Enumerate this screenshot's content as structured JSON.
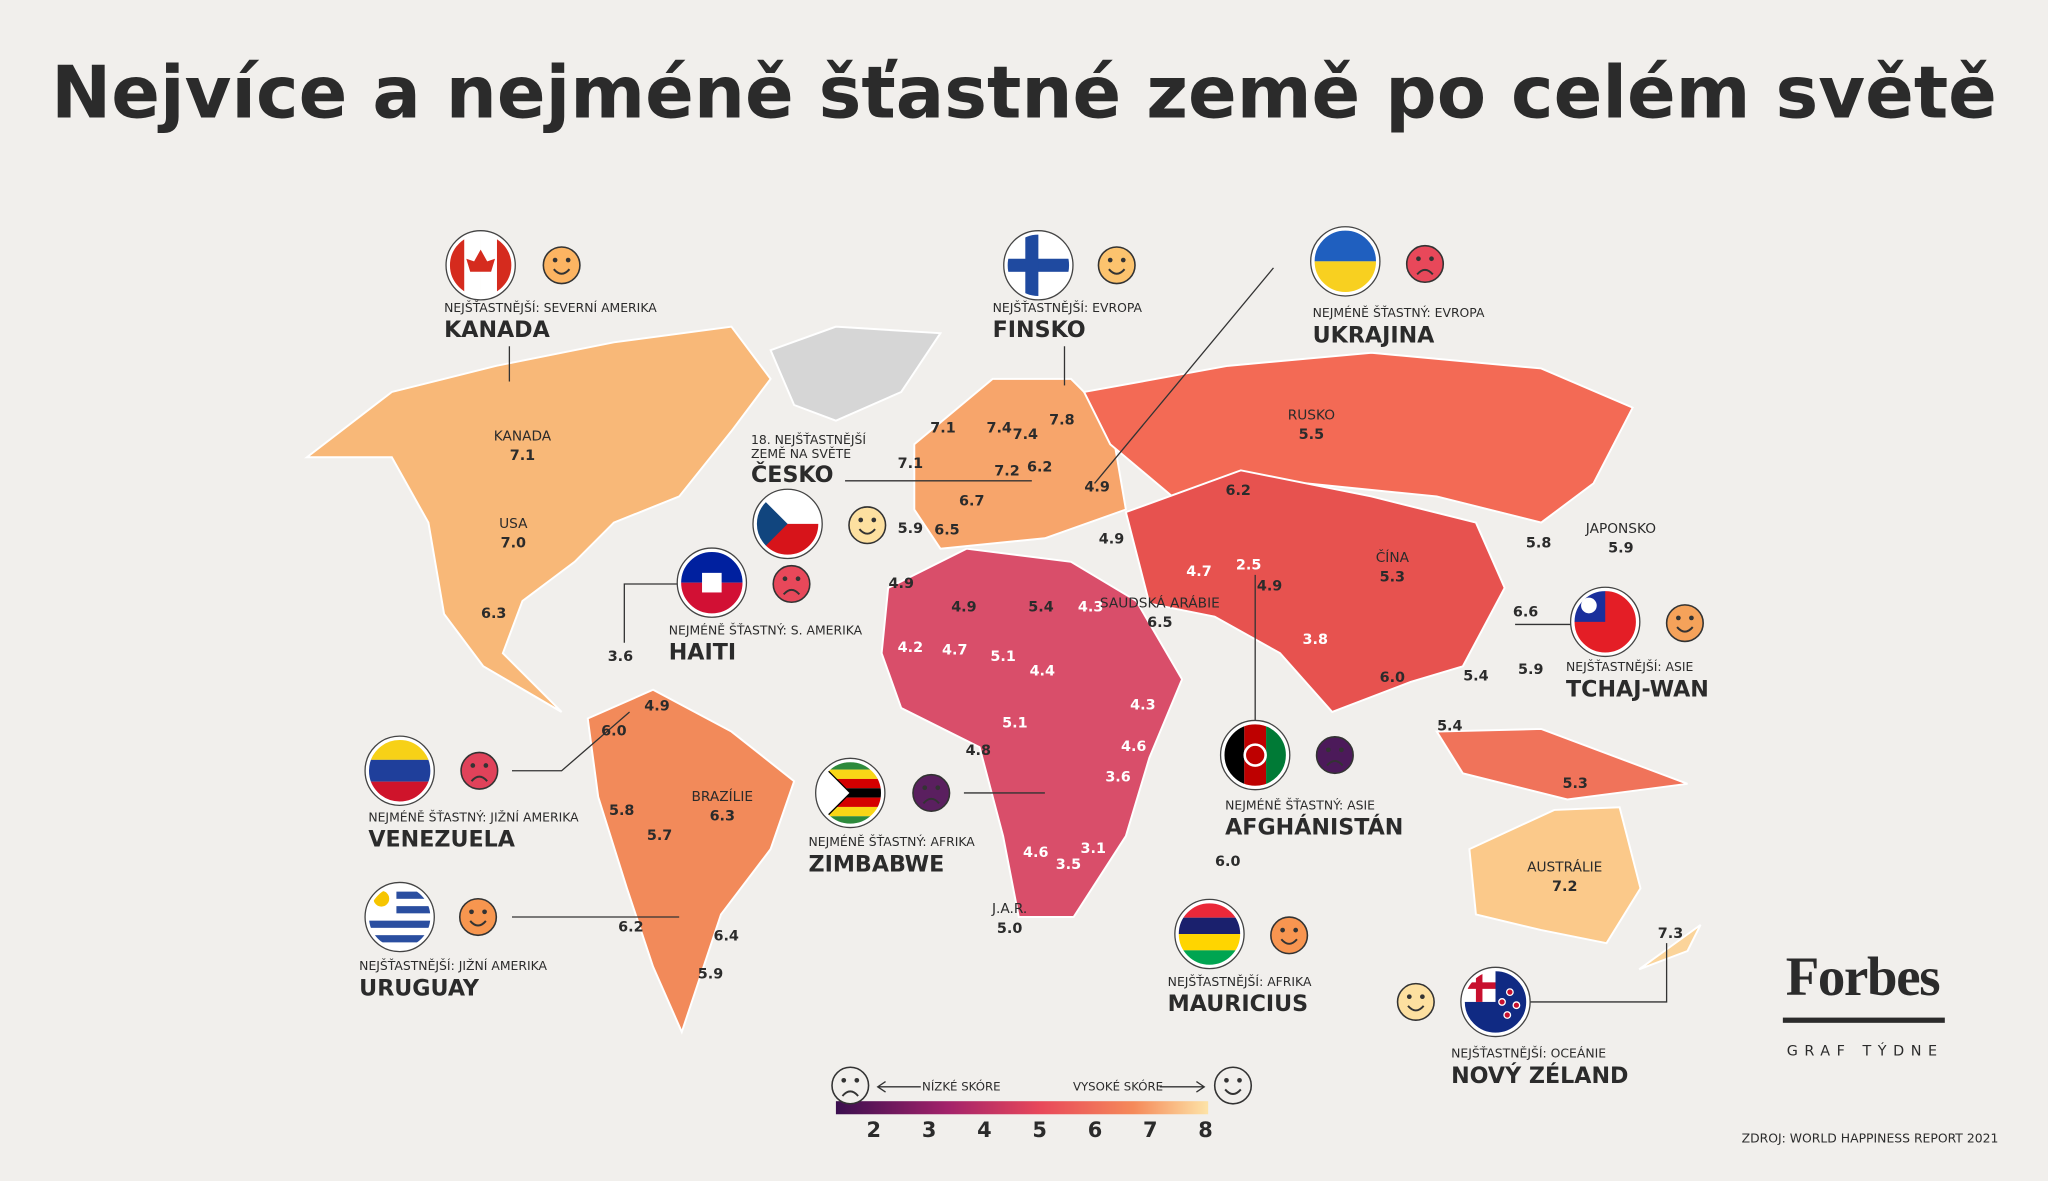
{
  "title": "Nejvíce a nejméně šťastné země po celém světě",
  "callouts": [
    {
      "caption": "NEJŠŤASTNĚJŠÍ: SEVERNÍ AMERIKA",
      "name": "KANADA"
    },
    {
      "caption": "NEJŠŤASTNĚJŠÍ: EVROPA",
      "name": "FINSKO"
    },
    {
      "caption": "NEJMÉNĚ ŠŤASTNÝ: EVROPA",
      "name": "UKRAJINA"
    },
    {
      "caption": [
        "18. NEJŠŤASTNĚJŠÍ",
        "ZEMĚ NA SVĚTE"
      ],
      "name": "ČESKO"
    },
    {
      "caption": "NEJMÉNĚ ŠŤASTNÝ: S. AMERIKA",
      "name": "HAITI"
    },
    {
      "caption": "NEJŠŤASTNĚJŠÍ: ASIE",
      "name": "TCHAJ-WAN"
    },
    {
      "caption": "NEJMÉNĚ ŠŤASTNÝ: JIŽNÍ AMERIKA",
      "name": "VENEZUELA"
    },
    {
      "caption": "NEJMÉNĚ ŠŤASTNÝ: AFRIKA",
      "name": "ZIMBABWE"
    },
    {
      "caption": "NEJMÉNĚ ŠŤASTNÝ: ASIE",
      "name": "AFGHÁNISTÁN"
    },
    {
      "caption": "NEJŠŤASTNĚJŠÍ: JIŽNÍ AMERIKA",
      "name": "URUGUAY"
    },
    {
      "caption": "NEJŠŤASTNĚJŠÍ: AFRIKA",
      "name": "MAURICIUS"
    },
    {
      "caption": "NEJŠŤASTNĚJŠÍ: OCEÁNIE",
      "name": "NOVÝ ZÉLAND"
    }
  ],
  "map_labels": [
    {
      "label": "KANADA",
      "value": "7.1"
    },
    {
      "label": "USA",
      "value": "7.0"
    },
    {
      "value": "6.3"
    },
    {
      "value": "3.6"
    },
    {
      "value": "6.0"
    },
    {
      "value": "4.9"
    },
    {
      "value": "5.8"
    },
    {
      "value": "5.7"
    },
    {
      "label": "BRAZÍLIE",
      "value": "6.3"
    },
    {
      "value": "6.2"
    },
    {
      "value": "6.4"
    },
    {
      "value": "5.9"
    },
    {
      "value": "7.1"
    },
    {
      "value": "7.1"
    },
    {
      "value": "7.4"
    },
    {
      "value": "7.4"
    },
    {
      "value": "7.8"
    },
    {
      "value": "7.2"
    },
    {
      "value": "6.2"
    },
    {
      "value": "6.7"
    },
    {
      "value": "6.5"
    },
    {
      "value": "5.9"
    },
    {
      "value": "4.9"
    },
    {
      "value": "4.9"
    },
    {
      "label": "RUSKO",
      "value": "5.5"
    },
    {
      "value": "6.2"
    },
    {
      "value": "4.7"
    },
    {
      "value": "2.5"
    },
    {
      "value": "4.9"
    },
    {
      "label": "ČÍNA",
      "value": "5.3"
    },
    {
      "label": "JAPONSKO",
      "value": "5.9"
    },
    {
      "value": "5.8"
    },
    {
      "value": "3.8"
    },
    {
      "value": "6.6"
    },
    {
      "value": "6.0"
    },
    {
      "value": "5.4"
    },
    {
      "value": "5.9"
    },
    {
      "value": "5.4"
    },
    {
      "value": "5.3"
    },
    {
      "label": "AUSTRÁLIE",
      "value": "7.2"
    },
    {
      "value": "7.3"
    },
    {
      "value": "6.0"
    },
    {
      "value": "4.9"
    },
    {
      "value": "4.9"
    },
    {
      "value": "5.4"
    },
    {
      "value": "4.3"
    },
    {
      "label": "SAUDSKÁ ARÁBIE",
      "value": "6.5"
    },
    {
      "value": "4.2"
    },
    {
      "value": "4.7"
    },
    {
      "value": "5.1"
    },
    {
      "value": "4.4"
    },
    {
      "value": "5.1"
    },
    {
      "value": "4.3"
    },
    {
      "value": "4.8"
    },
    {
      "value": "4.6"
    },
    {
      "value": "3.6"
    },
    {
      "value": "4.6"
    },
    {
      "value": "3.1"
    },
    {
      "value": "3.5"
    },
    {
      "label": "J.A.R.",
      "value": "5.0"
    }
  ],
  "legend": {
    "low": "NÍZKÉ SKÓRE",
    "high": "VYSOKÉ SKÓRE",
    "ticks": [
      2,
      3,
      4,
      5,
      6,
      7,
      8
    ]
  },
  "brand": {
    "name": "Forbes",
    "sub": "GRAF TÝDNE"
  },
  "source": "ZDROJ:  WORLD HAPPINESS REPORT 2021"
}
